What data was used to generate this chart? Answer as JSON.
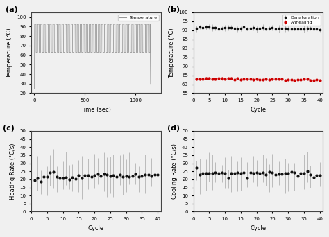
{
  "fig_size": [
    4.74,
    3.42
  ],
  "dpi": 100,
  "bg_color": "#f0f0f0",
  "panel_a": {
    "label": "(a)",
    "xlabel": "Time (sec)",
    "ylabel": "Temperature (°C)",
    "xlim": [
      -30,
      1250
    ],
    "ylim": [
      20,
      105
    ],
    "yticks": [
      20,
      30,
      40,
      50,
      60,
      70,
      80,
      90,
      100
    ],
    "xticks": [
      0,
      500,
      1000
    ],
    "n_cycles": 38,
    "cycle_period": 30,
    "high_temp": 92.5,
    "low_temp": 63.0,
    "start_temp": 25,
    "end_temp": 30,
    "legend_label": "Temperature",
    "line_color": "#999999"
  },
  "panel_b": {
    "label": "(b)",
    "xlabel": "Cycle",
    "ylabel": "Temperature (°C)",
    "xlim": [
      0,
      41
    ],
    "ylim": [
      55,
      100
    ],
    "yticks": [
      55,
      60,
      65,
      70,
      75,
      80,
      85,
      90,
      95,
      100
    ],
    "xticks": [
      0,
      5,
      10,
      15,
      20,
      25,
      30,
      35,
      40
    ],
    "n_cycles": 40,
    "denat_color": "#111111",
    "anneal_color": "#cc0000",
    "denat_err_color": "#bbbbbb",
    "anneal_err_color": "#ff8888",
    "legend_denat": "Denaturation",
    "legend_anneal": "Annealing"
  },
  "panel_c": {
    "label": "(c)",
    "xlabel": "Cycle",
    "ylabel": "Heating Rate (°C/s)",
    "xlim": [
      0,
      41
    ],
    "ylim": [
      0,
      50
    ],
    "yticks": [
      0,
      5,
      10,
      15,
      20,
      25,
      30,
      35,
      40,
      45,
      50
    ],
    "xticks": [
      0,
      5,
      10,
      15,
      20,
      25,
      30,
      35,
      40
    ],
    "n_cycles": 40,
    "dot_color": "#111111",
    "err_color": "#bbbbbb"
  },
  "panel_d": {
    "label": "(d)",
    "xlabel": "Cycle",
    "ylabel": "Cooling Rate (°C/s)",
    "xlim": [
      0,
      41
    ],
    "ylim": [
      0,
      50
    ],
    "yticks": [
      0,
      5,
      10,
      15,
      20,
      25,
      30,
      35,
      40,
      45,
      50
    ],
    "xticks": [
      0,
      5,
      10,
      15,
      20,
      25,
      30,
      35,
      40
    ],
    "n_cycles": 40,
    "dot_color": "#111111",
    "err_color": "#bbbbbb"
  }
}
